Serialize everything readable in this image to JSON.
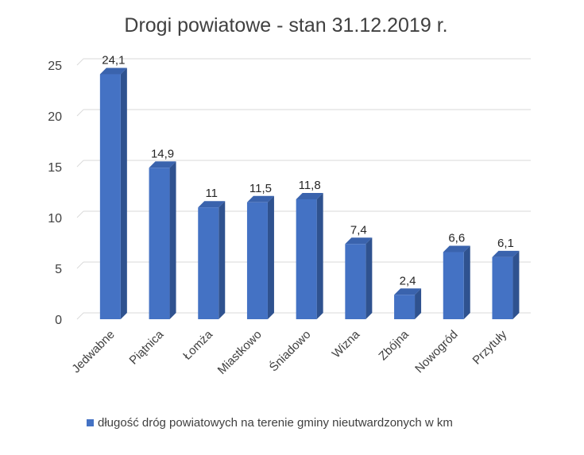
{
  "chart_data": {
    "type": "bar",
    "title": "Drogi powiatowe - stan 31.12.2019 r.",
    "categories": [
      "Jedwabne",
      "Piątnica",
      "Łomża",
      "Miastkowo",
      "Śniadowo",
      "Wizna",
      "Zbójna",
      "Nowogród",
      "Przytuły"
    ],
    "series": [
      {
        "name": "długość dróg powiatowych na terenie gminy nieutwardzonych w km",
        "values": [
          24.1,
          14.9,
          11,
          11.5,
          11.8,
          7.4,
          2.4,
          6.6,
          6.1
        ],
        "labels": [
          "24,1",
          "14,9",
          "11",
          "11,5",
          "11,8",
          "7,4",
          "2,4",
          "6,6",
          "6,1"
        ]
      }
    ],
    "yticks": [
      0,
      5,
      10,
      15,
      20,
      25
    ],
    "ylim": [
      0,
      25
    ],
    "xlabel": "",
    "ylabel": "",
    "grid": true,
    "legend_position": "bottom",
    "colors": {
      "bar_front": "#4472c4",
      "bar_side": "#2f528f",
      "bar_top": "#3a63ad"
    }
  }
}
